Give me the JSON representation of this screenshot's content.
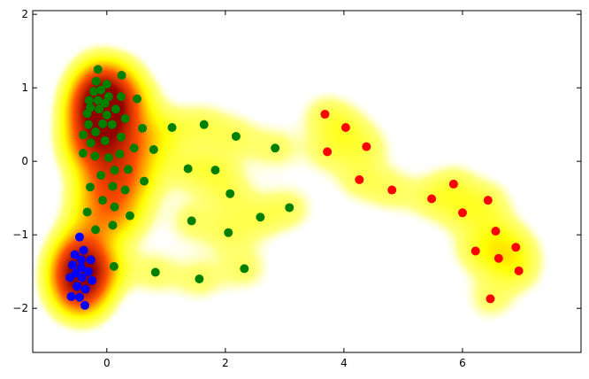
{
  "chart_data": {
    "type": "scatter",
    "title": "",
    "xlabel": "",
    "ylabel": "",
    "xlim": [
      -1.25,
      8
    ],
    "ylim": [
      -2.6,
      2.05
    ],
    "grid": false,
    "background": "density heatmap (white-yellow-red colormap) of all points",
    "x_ticks": [
      {
        "value": 0,
        "label": "0"
      },
      {
        "value": 2,
        "label": "2"
      },
      {
        "value": 4,
        "label": "4"
      },
      {
        "value": 6,
        "label": "6"
      }
    ],
    "y_ticks": [
      {
        "value": -2,
        "label": "−2"
      },
      {
        "value": -1,
        "label": "−1"
      },
      {
        "value": 0,
        "label": "0"
      },
      {
        "value": 1,
        "label": "1"
      },
      {
        "value": 2,
        "label": "2"
      }
    ],
    "series": [
      {
        "color": "#0000ff",
        "points": [
          [
            -0.46,
            -1.03
          ],
          [
            -0.39,
            -1.21
          ],
          [
            -0.54,
            -1.27
          ],
          [
            -0.27,
            -1.34
          ],
          [
            -0.43,
            -1.34
          ],
          [
            -0.58,
            -1.41
          ],
          [
            -0.43,
            -1.45
          ],
          [
            -0.31,
            -1.5
          ],
          [
            -0.52,
            -1.52
          ],
          [
            -0.62,
            -1.58
          ],
          [
            -0.42,
            -1.58
          ],
          [
            -0.25,
            -1.62
          ],
          [
            -0.5,
            -1.7
          ],
          [
            -0.36,
            -1.74
          ],
          [
            -0.6,
            -1.84
          ],
          [
            -0.46,
            -1.85
          ],
          [
            -0.37,
            -1.96
          ]
        ]
      },
      {
        "color": "#008000",
        "points": [
          [
            -0.15,
            1.25
          ],
          [
            0.25,
            1.17
          ],
          [
            -0.18,
            1.09
          ],
          [
            0,
            1.05
          ],
          [
            -0.22,
            0.95
          ],
          [
            -0.1,
            0.97
          ],
          [
            0.03,
            0.88
          ],
          [
            0.24,
            0.88
          ],
          [
            0.51,
            0.85
          ],
          [
            -0.3,
            0.83
          ],
          [
            -0.15,
            0.83
          ],
          [
            -0.03,
            0.79
          ],
          [
            -0.28,
            0.73
          ],
          [
            -0.13,
            0.71
          ],
          [
            0.15,
            0.71
          ],
          [
            -0.33,
            0.65
          ],
          [
            0,
            0.63
          ],
          [
            0.31,
            0.58
          ],
          [
            0.6,
            0.45
          ],
          [
            -0.31,
            0.5
          ],
          [
            -0.07,
            0.51
          ],
          [
            0.09,
            0.5
          ],
          [
            -0.4,
            0.36
          ],
          [
            -0.19,
            0.4
          ],
          [
            -0.27,
            0.25
          ],
          [
            -0.03,
            0.28
          ],
          [
            0.24,
            0.33
          ],
          [
            0.46,
            0.18
          ],
          [
            0.79,
            0.16
          ],
          [
            -0.4,
            0.11
          ],
          [
            -0.2,
            0.07
          ],
          [
            0.03,
            0.05
          ],
          [
            0.22,
            0.1
          ],
          [
            0.13,
            -0.12
          ],
          [
            0.36,
            -0.11
          ],
          [
            -0.1,
            -0.19
          ],
          [
            0.63,
            -0.27
          ],
          [
            -0.28,
            -0.35
          ],
          [
            0.1,
            -0.34
          ],
          [
            0.31,
            -0.39
          ],
          [
            -0.07,
            -0.53
          ],
          [
            0.13,
            -0.62
          ],
          [
            -0.33,
            -0.69
          ],
          [
            0.39,
            -0.74
          ],
          [
            -0.19,
            -0.93
          ],
          [
            0.1,
            -0.87
          ],
          [
            0.12,
            -1.43
          ],
          [
            0.82,
            -1.51
          ],
          [
            1.1,
            0.46
          ],
          [
            1.64,
            0.5
          ],
          [
            2.18,
            0.34
          ],
          [
            2.84,
            0.18
          ],
          [
            1.37,
            -0.1
          ],
          [
            1.83,
            -0.12
          ],
          [
            2.08,
            -0.44
          ],
          [
            1.43,
            -0.81
          ],
          [
            2.59,
            -0.76
          ],
          [
            3.08,
            -0.63
          ],
          [
            2.05,
            -0.97
          ],
          [
            2.32,
            -1.46
          ],
          [
            1.56,
            -1.6
          ]
        ]
      },
      {
        "color": "#ff0000",
        "points": [
          [
            3.68,
            0.64
          ],
          [
            3.72,
            0.13
          ],
          [
            4.03,
            0.46
          ],
          [
            4.38,
            0.2
          ],
          [
            4.26,
            -0.25
          ],
          [
            4.81,
            -0.39
          ],
          [
            5.48,
            -0.51
          ],
          [
            5.85,
            -0.31
          ],
          [
            6.0,
            -0.7
          ],
          [
            6.43,
            -0.53
          ],
          [
            6.56,
            -0.95
          ],
          [
            6.22,
            -1.22
          ],
          [
            6.61,
            -1.32
          ],
          [
            6.9,
            -1.17
          ],
          [
            6.95,
            -1.49
          ],
          [
            6.47,
            -1.87
          ]
        ]
      }
    ]
  }
}
